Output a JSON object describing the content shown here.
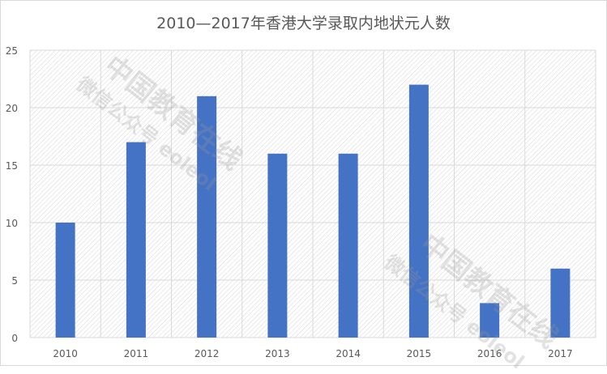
{
  "chart_data": {
    "type": "bar",
    "title": "2010—2017年香港大学录取内地状元人数",
    "categories": [
      "2010",
      "2011",
      "2012",
      "2013",
      "2014",
      "2015",
      "2016",
      "2017"
    ],
    "values": [
      10,
      17,
      21,
      16,
      16,
      22,
      3,
      6
    ],
    "ylim": [
      0,
      25
    ],
    "yticks": [
      0,
      5,
      10,
      15,
      20,
      25
    ],
    "xlabel": "",
    "ylabel": "",
    "grid": true,
    "bar_color": "#4472c4",
    "plot_background": "diagonal hatch, light gray"
  },
  "watermark": {
    "line1": "中国教育在线",
    "line2": "微信公众号 eoleol"
  }
}
